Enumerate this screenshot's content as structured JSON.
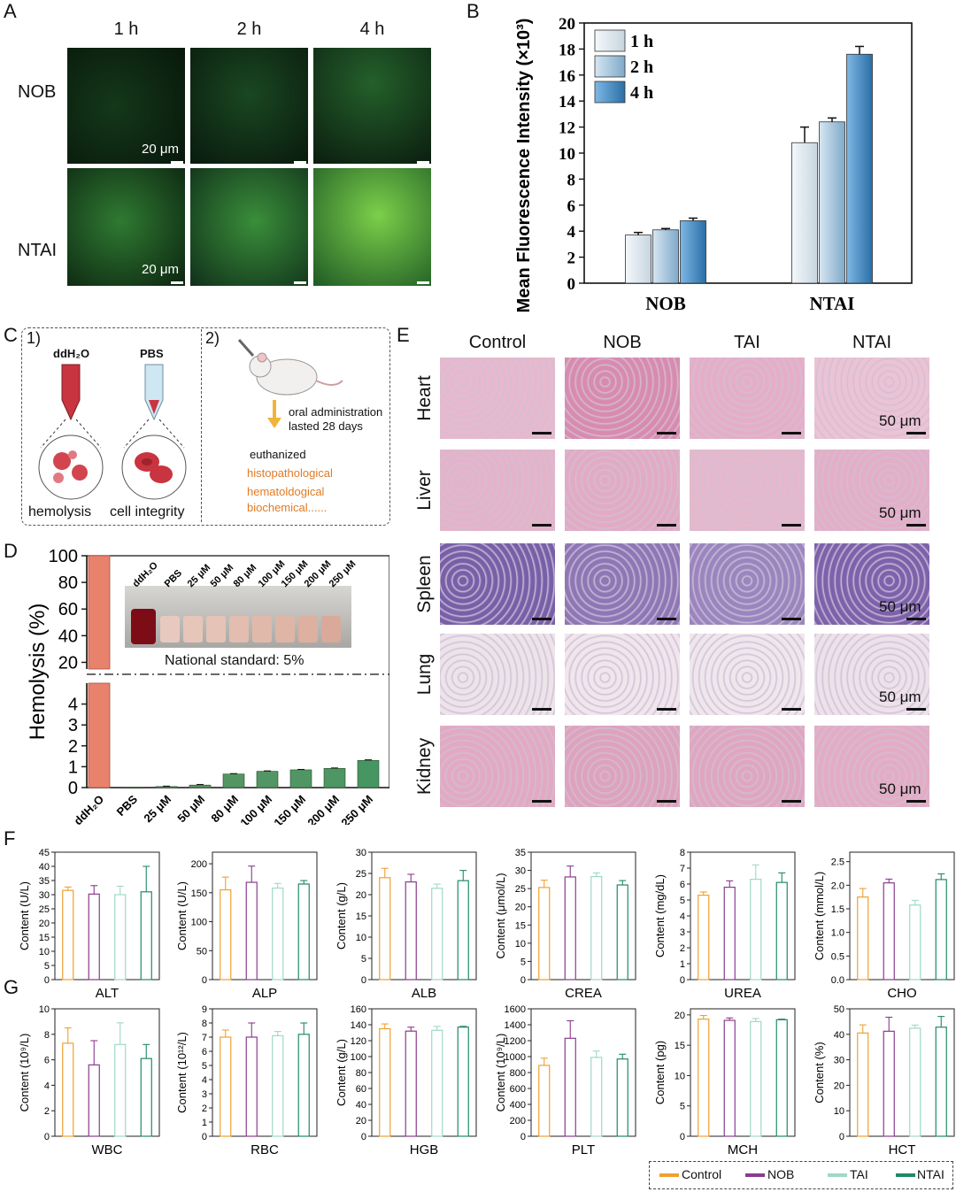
{
  "panel_letters": {
    "a": "A",
    "b": "B",
    "c": "C",
    "d": "D",
    "e": "E",
    "f": "F",
    "g": "G"
  },
  "panelA": {
    "columns": [
      "1 h",
      "2 h",
      "4 h"
    ],
    "rows": [
      "NOB",
      "NTAI"
    ],
    "scale_text": "20 μm"
  },
  "panelC": {
    "step1": "1)",
    "step2": "2)",
    "tube1_label": "ddH₂O",
    "tube2_label": "PBS",
    "caption1": "hemolysis",
    "caption2": "cell integrity",
    "admin_text": "oral administration",
    "admin_text2": "lasted 28 days",
    "euthanized": "euthanized",
    "tests": [
      "histopathological",
      "hematoldogical",
      "biochemical......"
    ]
  },
  "panelE": {
    "columns": [
      "Control",
      "NOB",
      "TAI",
      "NTAI"
    ],
    "rows": [
      "Heart",
      "Liver",
      "Spleen",
      "Lung",
      "Kidney"
    ],
    "scale_text": "50 μm"
  },
  "panelD_inset": {
    "labels": [
      "ddH₂O",
      "PBS",
      "25 μM",
      "50 μM",
      "80 μM",
      "100 μM",
      "150 μM",
      "200 μM",
      "250 μM"
    ],
    "standard_text": "National standard: 5%"
  },
  "colors": {
    "control": "#f0a030",
    "nob": "#8b3a8f",
    "tai": "#9ed9c8",
    "ntai": "#1f8a64"
  },
  "legend": [
    "Control",
    "NOB",
    "TAI",
    "NTAI"
  ],
  "chart_data": [
    {
      "id": "B",
      "type": "bar",
      "categories": [
        "NOB",
        "NTAI"
      ],
      "series": [
        {
          "name": "1 h",
          "values": [
            3.7,
            10.8
          ],
          "errors": [
            0.2,
            1.2
          ]
        },
        {
          "name": "2 h",
          "values": [
            4.1,
            12.4
          ],
          "errors": [
            0.1,
            0.3
          ]
        },
        {
          "name": "4 h",
          "values": [
            4.8,
            17.6
          ],
          "errors": [
            0.2,
            0.6
          ]
        }
      ],
      "ylabel": "Mean Fluorescence Intensity (×10³)",
      "ylim": [
        0,
        20
      ],
      "yticks": [
        0,
        2,
        4,
        6,
        8,
        10,
        12,
        14,
        16,
        18,
        20
      ],
      "legend_position": "top-left"
    },
    {
      "id": "D",
      "type": "bar",
      "categories": [
        "ddH₂O",
        "PBS",
        "25 μM",
        "50 μM",
        "80 μM",
        "100 μM",
        "150 μM",
        "200 μM",
        "250 μM"
      ],
      "values": [
        100,
        0.0,
        0.05,
        0.12,
        0.65,
        0.78,
        0.85,
        0.92,
        1.3
      ],
      "errors": [
        0,
        0,
        0.02,
        0.03,
        0.02,
        0.02,
        0.02,
        0.02,
        0.03
      ],
      "ylabel": "Hemolysis (%)",
      "ylim_lower": [
        0,
        5
      ],
      "ylim_upper": [
        15,
        100
      ],
      "yticks_lower": [
        0,
        1,
        2,
        3,
        4
      ],
      "yticks_upper": [
        20,
        40,
        60,
        80,
        100
      ],
      "reference_line": 5
    },
    {
      "id": "F-ALT",
      "type": "bar",
      "title": "ALT",
      "ylabel": "Content (U/L)",
      "categories": [
        "Control",
        "NOB",
        "TAI",
        "NTAI"
      ],
      "values": [
        31.5,
        30.2,
        30,
        31
      ],
      "errors": [
        1.2,
        3,
        3,
        9
      ],
      "ylim": [
        0,
        45
      ],
      "yticks": [
        0,
        5,
        10,
        15,
        20,
        25,
        30,
        35,
        40,
        45
      ]
    },
    {
      "id": "F-ALP",
      "type": "bar",
      "title": "ALP",
      "ylabel": "Content (U/L)",
      "categories": [
        "Control",
        "NOB",
        "TAI",
        "NTAI"
      ],
      "values": [
        155,
        168,
        158,
        165
      ],
      "errors": [
        22,
        28,
        8,
        6
      ],
      "ylim": [
        0,
        220
      ],
      "yticks": [
        0,
        50,
        100,
        150,
        200
      ]
    },
    {
      "id": "F-ALB",
      "type": "bar",
      "title": "ALB",
      "ylabel": "Content (g/L)",
      "categories": [
        "Control",
        "NOB",
        "TAI",
        "NTAI"
      ],
      "values": [
        24,
        23,
        21.5,
        23.3
      ],
      "errors": [
        2.2,
        1.8,
        1,
        2.4
      ],
      "ylim": [
        0,
        30
      ],
      "yticks": [
        0,
        5,
        10,
        15,
        20,
        25,
        30
      ]
    },
    {
      "id": "F-CREA",
      "type": "bar",
      "title": "CREA",
      "ylabel": "Content (μmol/L)",
      "categories": [
        "Control",
        "NOB",
        "TAI",
        "NTAI"
      ],
      "values": [
        25.3,
        28.2,
        28.3,
        26
      ],
      "errors": [
        2,
        3,
        1,
        1.2
      ],
      "ylim": [
        0,
        35
      ],
      "yticks": [
        0,
        5,
        10,
        15,
        20,
        25,
        30,
        35
      ]
    },
    {
      "id": "F-UREA",
      "type": "bar",
      "title": "UREA",
      "ylabel": "Content (mg/dL)",
      "categories": [
        "Control",
        "NOB",
        "TAI",
        "NTAI"
      ],
      "values": [
        5.3,
        5.8,
        6.3,
        6.1
      ],
      "errors": [
        0.2,
        0.4,
        0.9,
        0.6
      ],
      "ylim": [
        0,
        8
      ],
      "yticks": [
        0,
        1,
        2,
        3,
        4,
        5,
        6,
        7,
        8
      ]
    },
    {
      "id": "F-CHO",
      "type": "bar",
      "title": "CHO",
      "ylabel": "Content (mmol/L)",
      "categories": [
        "Control",
        "NOB",
        "TAI",
        "NTAI"
      ],
      "values": [
        1.75,
        2.05,
        1.58,
        2.12
      ],
      "errors": [
        0.18,
        0.08,
        0.1,
        0.12
      ],
      "ylim": [
        0,
        2.7
      ],
      "yticks": [
        0.0,
        0.5,
        1.0,
        1.5,
        2.0,
        2.5
      ]
    },
    {
      "id": "G-WBC",
      "type": "bar",
      "title": "WBC",
      "ylabel": "Content (10⁹/L)",
      "categories": [
        "Control",
        "NOB",
        "TAI",
        "NTAI"
      ],
      "values": [
        7.3,
        5.6,
        7.2,
        6.1
      ],
      "errors": [
        1.2,
        1.9,
        1.7,
        1.1
      ],
      "ylim": [
        0,
        10
      ],
      "yticks": [
        0,
        2,
        4,
        6,
        8,
        10
      ]
    },
    {
      "id": "G-RBC",
      "type": "bar",
      "title": "RBC",
      "ylabel": "Content (10¹²/L)",
      "categories": [
        "Control",
        "NOB",
        "TAI",
        "NTAI"
      ],
      "values": [
        7.0,
        7.0,
        7.1,
        7.2
      ],
      "errors": [
        0.5,
        1.0,
        0.3,
        0.8
      ],
      "ylim": [
        0,
        9
      ],
      "yticks": [
        0,
        1,
        2,
        3,
        4,
        5,
        6,
        7,
        8,
        9
      ]
    },
    {
      "id": "G-HGB",
      "type": "bar",
      "title": "HGB",
      "ylabel": "Content (g/L)",
      "categories": [
        "Control",
        "NOB",
        "TAI",
        "NTAI"
      ],
      "values": [
        135,
        132,
        133,
        137
      ],
      "errors": [
        6,
        5,
        5,
        1
      ],
      "ylim": [
        0,
        160
      ],
      "yticks": [
        0,
        20,
        40,
        60,
        80,
        100,
        120,
        140,
        160
      ]
    },
    {
      "id": "G-PLT",
      "type": "bar",
      "title": "PLT",
      "ylabel": "Content (10⁹/L)",
      "categories": [
        "Control",
        "NOB",
        "TAI",
        "NTAI"
      ],
      "values": [
        890,
        1230,
        990,
        970
      ],
      "errors": [
        90,
        220,
        80,
        60
      ],
      "ylim": [
        0,
        1600
      ],
      "yticks": [
        0,
        200,
        400,
        600,
        800,
        1000,
        1200,
        1400,
        1600
      ]
    },
    {
      "id": "G-MCH",
      "type": "bar",
      "title": "MCH",
      "ylabel": "Content (pg)",
      "categories": [
        "Control",
        "NOB",
        "TAI",
        "NTAI"
      ],
      "values": [
        19.3,
        19.1,
        18.9,
        19.2
      ],
      "errors": [
        0.6,
        0.4,
        0.5,
        0.1
      ],
      "ylim": [
        0,
        21
      ],
      "yticks": [
        0,
        5,
        10,
        15,
        20
      ]
    },
    {
      "id": "G-HCT",
      "type": "bar",
      "title": "HCT",
      "ylabel": "Content (%)",
      "categories": [
        "Control",
        "NOB",
        "TAI",
        "NTAI"
      ],
      "values": [
        40.5,
        41.2,
        42.4,
        42.8
      ],
      "errors": [
        3.2,
        5.5,
        1.2,
        4.2
      ],
      "ylim": [
        0,
        50
      ],
      "yticks": [
        0,
        10,
        20,
        30,
        40,
        50
      ]
    }
  ]
}
